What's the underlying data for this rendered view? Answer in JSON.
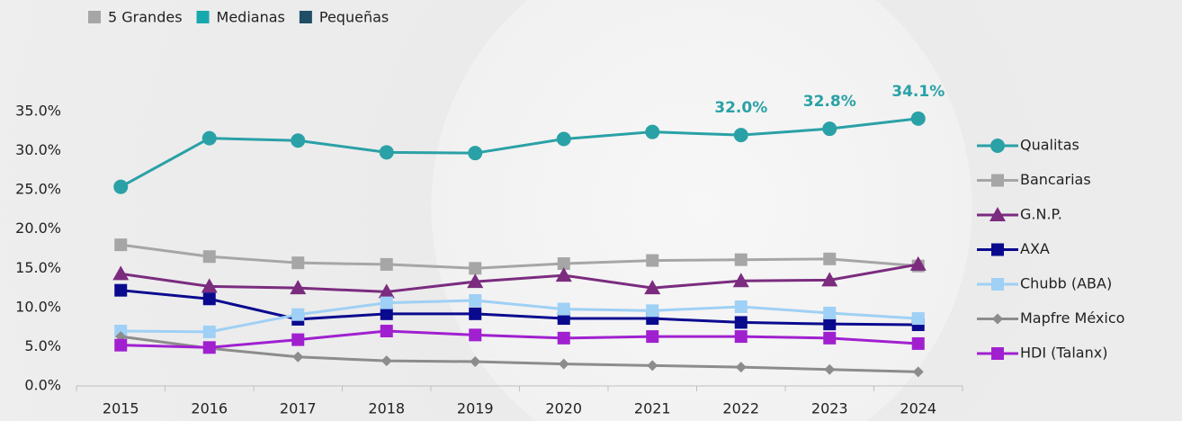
{
  "chart_data": {
    "type": "line",
    "groups": [
      {
        "name": "5 Grandes",
        "color": "#a6a6a6"
      },
      {
        "name": "Medianas",
        "color": "#17a8ad"
      },
      {
        "name": "Pequeñas",
        "color": "#1f4e66"
      }
    ],
    "categories": [
      "2015",
      "2016",
      "2017",
      "2018",
      "2019",
      "2020",
      "2021",
      "2022",
      "2023",
      "2024"
    ],
    "ylim": [
      0,
      35
    ],
    "yticks": [
      {
        "value": 0,
        "label": "0.0%"
      },
      {
        "value": 5,
        "label": "5.0%"
      },
      {
        "value": 10,
        "label": "10.0%"
      },
      {
        "value": 15,
        "label": "15.0%"
      },
      {
        "value": 20,
        "label": "20.0%"
      },
      {
        "value": 25,
        "label": "25.0%"
      },
      {
        "value": 30,
        "label": "30.0%"
      },
      {
        "value": 35,
        "label": "35.0%"
      }
    ],
    "series": [
      {
        "name": "Qualitas",
        "color": "#2aa1a6",
        "marker": "circle",
        "values": [
          25.4,
          31.6,
          31.3,
          29.8,
          29.7,
          31.5,
          32.4,
          32.0,
          32.8,
          34.1
        ],
        "value_labels": [
          null,
          null,
          null,
          null,
          null,
          null,
          null,
          "32.0%",
          "32.8%",
          "34.1%"
        ]
      },
      {
        "name": "Bancarias",
        "color": "#a6a6a6",
        "marker": "square",
        "values": [
          18.0,
          16.5,
          15.7,
          15.5,
          15.0,
          15.6,
          16.0,
          16.1,
          16.2,
          15.3
        ]
      },
      {
        "name": "G.N.P.",
        "color": "#7b2c7f",
        "marker": "triangle",
        "values": [
          14.3,
          12.7,
          12.5,
          12.0,
          13.3,
          14.1,
          12.5,
          13.4,
          13.5,
          15.5
        ]
      },
      {
        "name": "AXA",
        "color": "#0a0a8f",
        "marker": "square",
        "values": [
          12.2,
          11.1,
          8.5,
          9.2,
          9.2,
          8.6,
          8.6,
          8.1,
          7.9,
          7.8
        ]
      },
      {
        "name": "Chubb (ABA)",
        "color": "#9fd0f5",
        "marker": "square",
        "values": [
          7.0,
          6.9,
          9.1,
          10.6,
          10.9,
          9.8,
          9.6,
          10.1,
          9.3,
          8.6
        ]
      },
      {
        "name": "Mapfre México",
        "color": "#8c8c8c",
        "marker": "diamond",
        "values": [
          6.3,
          4.8,
          3.7,
          3.2,
          3.1,
          2.8,
          2.6,
          2.4,
          2.1,
          1.8
        ]
      },
      {
        "name": "HDI (Talanx)",
        "color": "#a020d0",
        "marker": "square",
        "values": [
          5.2,
          4.9,
          5.9,
          7.0,
          6.5,
          6.1,
          6.3,
          6.3,
          6.1,
          5.4
        ]
      }
    ]
  }
}
